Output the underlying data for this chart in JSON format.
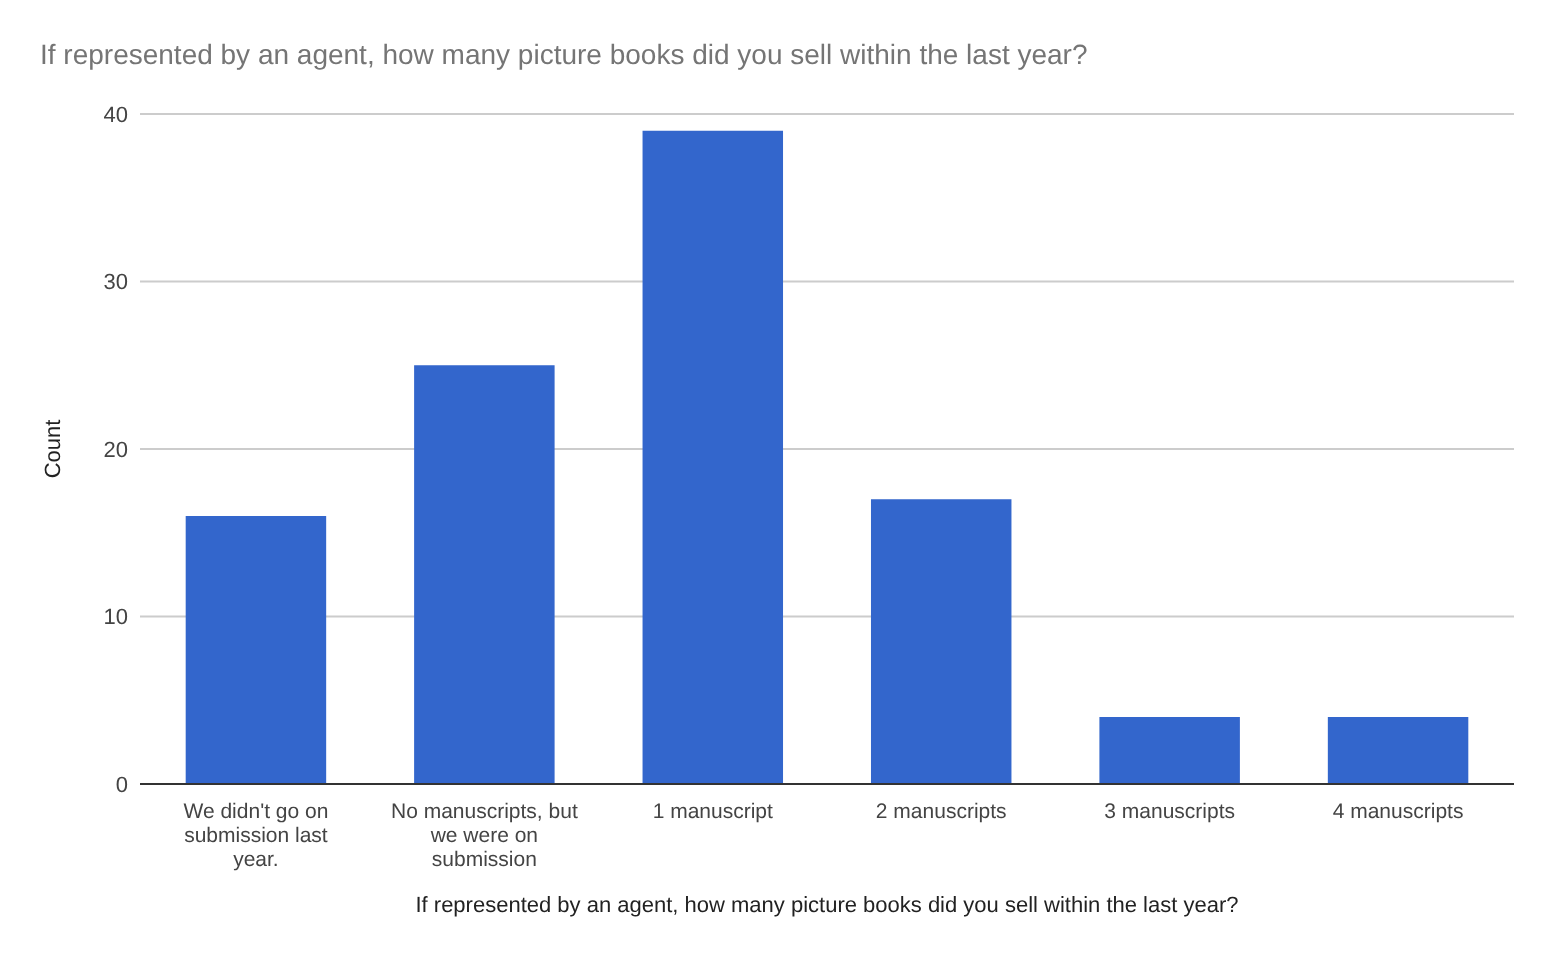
{
  "chart_data": {
    "type": "bar",
    "title": "If represented by an agent, how many picture books did you sell within the last year?",
    "xlabel": "If represented by an agent, how many picture books did you sell within the last year?",
    "ylabel": "Count",
    "categories": [
      "We didn't go on submission last year.",
      "No manuscripts, but we were on submission",
      "1 manuscript",
      "2 manuscripts",
      "3 manuscripts",
      "4 manuscripts"
    ],
    "values": [
      16,
      25,
      39,
      17,
      4,
      4
    ],
    "color": "#3366cc",
    "ylim": [
      0,
      40
    ],
    "yticks": [
      0,
      10,
      20,
      30,
      40
    ],
    "grid": "y"
  }
}
